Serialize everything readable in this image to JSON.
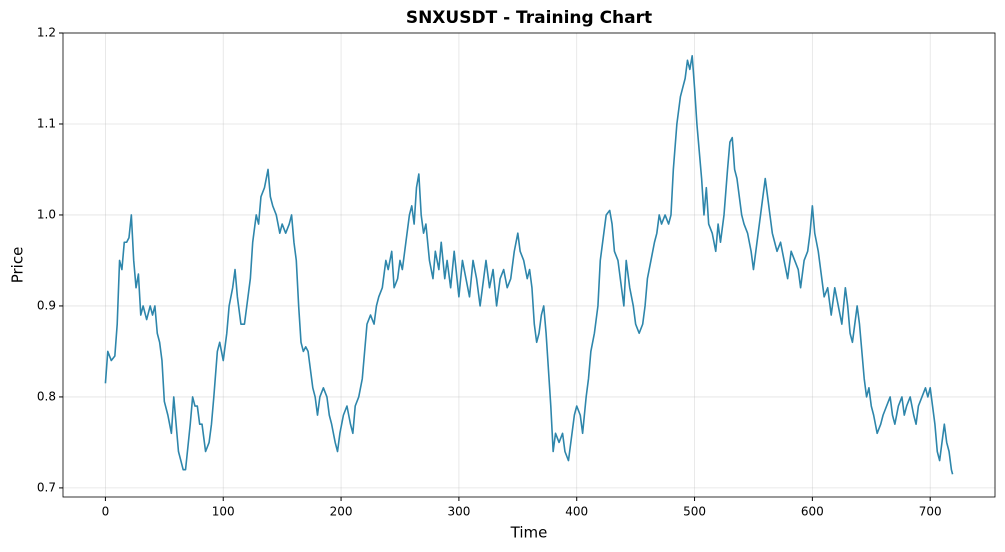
{
  "chart_data": {
    "type": "line",
    "title": "SNXUSDT - Training Chart",
    "x_label": "Time",
    "y_label": "Price",
    "x": [
      0,
      2,
      5,
      8,
      10,
      12,
      14,
      16,
      18,
      20,
      22,
      24,
      26,
      28,
      30,
      32,
      35,
      38,
      40,
      42,
      44,
      46,
      48,
      50,
      53,
      56,
      58,
      60,
      62,
      64,
      66,
      68,
      70,
      72,
      74,
      76,
      78,
      80,
      82,
      85,
      88,
      90,
      92,
      95,
      97,
      100,
      103,
      105,
      108,
      110,
      112,
      115,
      118,
      120,
      123,
      125,
      128,
      130,
      132,
      135,
      138,
      140,
      142,
      145,
      148,
      150,
      153,
      156,
      158,
      160,
      162,
      164,
      166,
      168,
      170,
      172,
      174,
      176,
      178,
      180,
      182,
      185,
      188,
      190,
      192,
      195,
      197,
      199,
      202,
      205,
      208,
      210,
      212,
      215,
      218,
      220,
      222,
      225,
      228,
      230,
      232,
      235,
      238,
      240,
      243,
      245,
      248,
      250,
      252,
      255,
      258,
      260,
      262,
      264,
      266,
      268,
      270,
      272,
      275,
      278,
      280,
      283,
      285,
      288,
      290,
      293,
      296,
      300,
      303,
      306,
      309,
      312,
      315,
      318,
      320,
      323,
      326,
      329,
      332,
      335,
      338,
      341,
      344,
      347,
      350,
      352,
      355,
      358,
      360,
      362,
      364,
      366,
      368,
      370,
      372,
      374,
      376,
      378,
      380,
      382,
      385,
      388,
      390,
      393,
      396,
      398,
      400,
      403,
      405,
      408,
      410,
      412,
      415,
      418,
      420,
      423,
      425,
      428,
      430,
      432,
      435,
      438,
      440,
      442,
      445,
      448,
      450,
      453,
      456,
      458,
      460,
      463,
      466,
      468,
      470,
      472,
      475,
      478,
      480,
      482,
      485,
      488,
      490,
      492,
      494,
      496,
      498,
      500,
      502,
      504,
      506,
      508,
      510,
      512,
      515,
      518,
      520,
      522,
      525,
      528,
      530,
      532,
      534,
      536,
      538,
      540,
      542,
      545,
      548,
      550,
      553,
      556,
      558,
      560,
      562,
      564,
      566,
      568,
      570,
      573,
      576,
      579,
      582,
      585,
      588,
      590,
      593,
      596,
      598,
      600,
      602,
      605,
      608,
      610,
      613,
      616,
      619,
      622,
      625,
      628,
      630,
      632,
      634,
      636,
      638,
      640,
      642,
      644,
      646,
      648,
      650,
      652,
      655,
      658,
      660,
      663,
      666,
      668,
      670,
      673,
      676,
      678,
      680,
      683,
      686,
      688,
      690,
      693,
      696,
      698,
      700,
      702,
      704,
      706,
      708,
      710,
      712,
      714,
      716,
      718,
      719
    ],
    "series": [
      {
        "name": "Price",
        "color": "#2e86ab",
        "values": [
          0.815,
          0.85,
          0.84,
          0.845,
          0.88,
          0.95,
          0.94,
          0.97,
          0.97,
          0.975,
          1.0,
          0.95,
          0.92,
          0.935,
          0.89,
          0.9,
          0.885,
          0.9,
          0.89,
          0.9,
          0.87,
          0.86,
          0.84,
          0.795,
          0.78,
          0.76,
          0.8,
          0.77,
          0.74,
          0.73,
          0.72,
          0.72,
          0.745,
          0.77,
          0.8,
          0.79,
          0.79,
          0.77,
          0.77,
          0.74,
          0.75,
          0.77,
          0.8,
          0.85,
          0.86,
          0.84,
          0.87,
          0.9,
          0.92,
          0.94,
          0.91,
          0.88,
          0.88,
          0.9,
          0.93,
          0.97,
          1.0,
          0.99,
          1.02,
          1.03,
          1.05,
          1.02,
          1.01,
          1.0,
          0.98,
          0.99,
          0.98,
          0.99,
          1.0,
          0.97,
          0.95,
          0.9,
          0.86,
          0.85,
          0.855,
          0.85,
          0.83,
          0.81,
          0.8,
          0.78,
          0.8,
          0.81,
          0.8,
          0.78,
          0.77,
          0.75,
          0.74,
          0.76,
          0.78,
          0.79,
          0.77,
          0.76,
          0.79,
          0.8,
          0.82,
          0.85,
          0.88,
          0.89,
          0.88,
          0.9,
          0.91,
          0.92,
          0.95,
          0.94,
          0.96,
          0.92,
          0.93,
          0.95,
          0.94,
          0.97,
          1.0,
          1.01,
          0.99,
          1.03,
          1.045,
          1.0,
          0.98,
          0.99,
          0.95,
          0.93,
          0.96,
          0.94,
          0.97,
          0.93,
          0.95,
          0.92,
          0.96,
          0.91,
          0.95,
          0.93,
          0.91,
          0.95,
          0.93,
          0.9,
          0.92,
          0.95,
          0.92,
          0.94,
          0.9,
          0.93,
          0.94,
          0.92,
          0.93,
          0.96,
          0.98,
          0.96,
          0.95,
          0.93,
          0.94,
          0.92,
          0.88,
          0.86,
          0.87,
          0.89,
          0.9,
          0.87,
          0.83,
          0.79,
          0.74,
          0.76,
          0.75,
          0.76,
          0.74,
          0.73,
          0.76,
          0.78,
          0.79,
          0.78,
          0.76,
          0.8,
          0.82,
          0.85,
          0.87,
          0.9,
          0.95,
          0.98,
          1.0,
          1.005,
          0.99,
          0.96,
          0.95,
          0.92,
          0.9,
          0.95,
          0.92,
          0.9,
          0.88,
          0.87,
          0.88,
          0.9,
          0.93,
          0.95,
          0.97,
          0.98,
          1.0,
          0.99,
          1.0,
          0.99,
          1.0,
          1.05,
          1.1,
          1.13,
          1.14,
          1.15,
          1.17,
          1.16,
          1.175,
          1.14,
          1.1,
          1.07,
          1.04,
          1.0,
          1.03,
          0.99,
          0.98,
          0.96,
          0.99,
          0.97,
          1.0,
          1.05,
          1.08,
          1.085,
          1.05,
          1.04,
          1.02,
          1.0,
          0.99,
          0.98,
          0.96,
          0.94,
          0.97,
          1.0,
          1.02,
          1.04,
          1.02,
          1.0,
          0.98,
          0.97,
          0.96,
          0.97,
          0.95,
          0.93,
          0.96,
          0.95,
          0.94,
          0.92,
          0.95,
          0.96,
          0.98,
          1.01,
          0.98,
          0.96,
          0.93,
          0.91,
          0.92,
          0.89,
          0.92,
          0.9,
          0.88,
          0.92,
          0.9,
          0.87,
          0.86,
          0.88,
          0.9,
          0.88,
          0.85,
          0.82,
          0.8,
          0.81,
          0.79,
          0.78,
          0.76,
          0.77,
          0.78,
          0.79,
          0.8,
          0.78,
          0.77,
          0.79,
          0.8,
          0.78,
          0.79,
          0.8,
          0.78,
          0.77,
          0.79,
          0.8,
          0.81,
          0.8,
          0.81,
          0.79,
          0.77,
          0.74,
          0.73,
          0.75,
          0.77,
          0.75,
          0.74,
          0.72,
          0.715
        ]
      }
    ],
    "xlim": [
      -36,
      755
    ],
    "ylim": [
      0.69,
      1.2
    ],
    "xticks": [
      0,
      100,
      200,
      300,
      400,
      500,
      600,
      700
    ],
    "yticks": [
      0.7,
      0.8,
      0.9,
      {
        "value": 1,
        "label": "1.0"
      },
      1.1,
      1.2
    ],
    "grid": true
  }
}
